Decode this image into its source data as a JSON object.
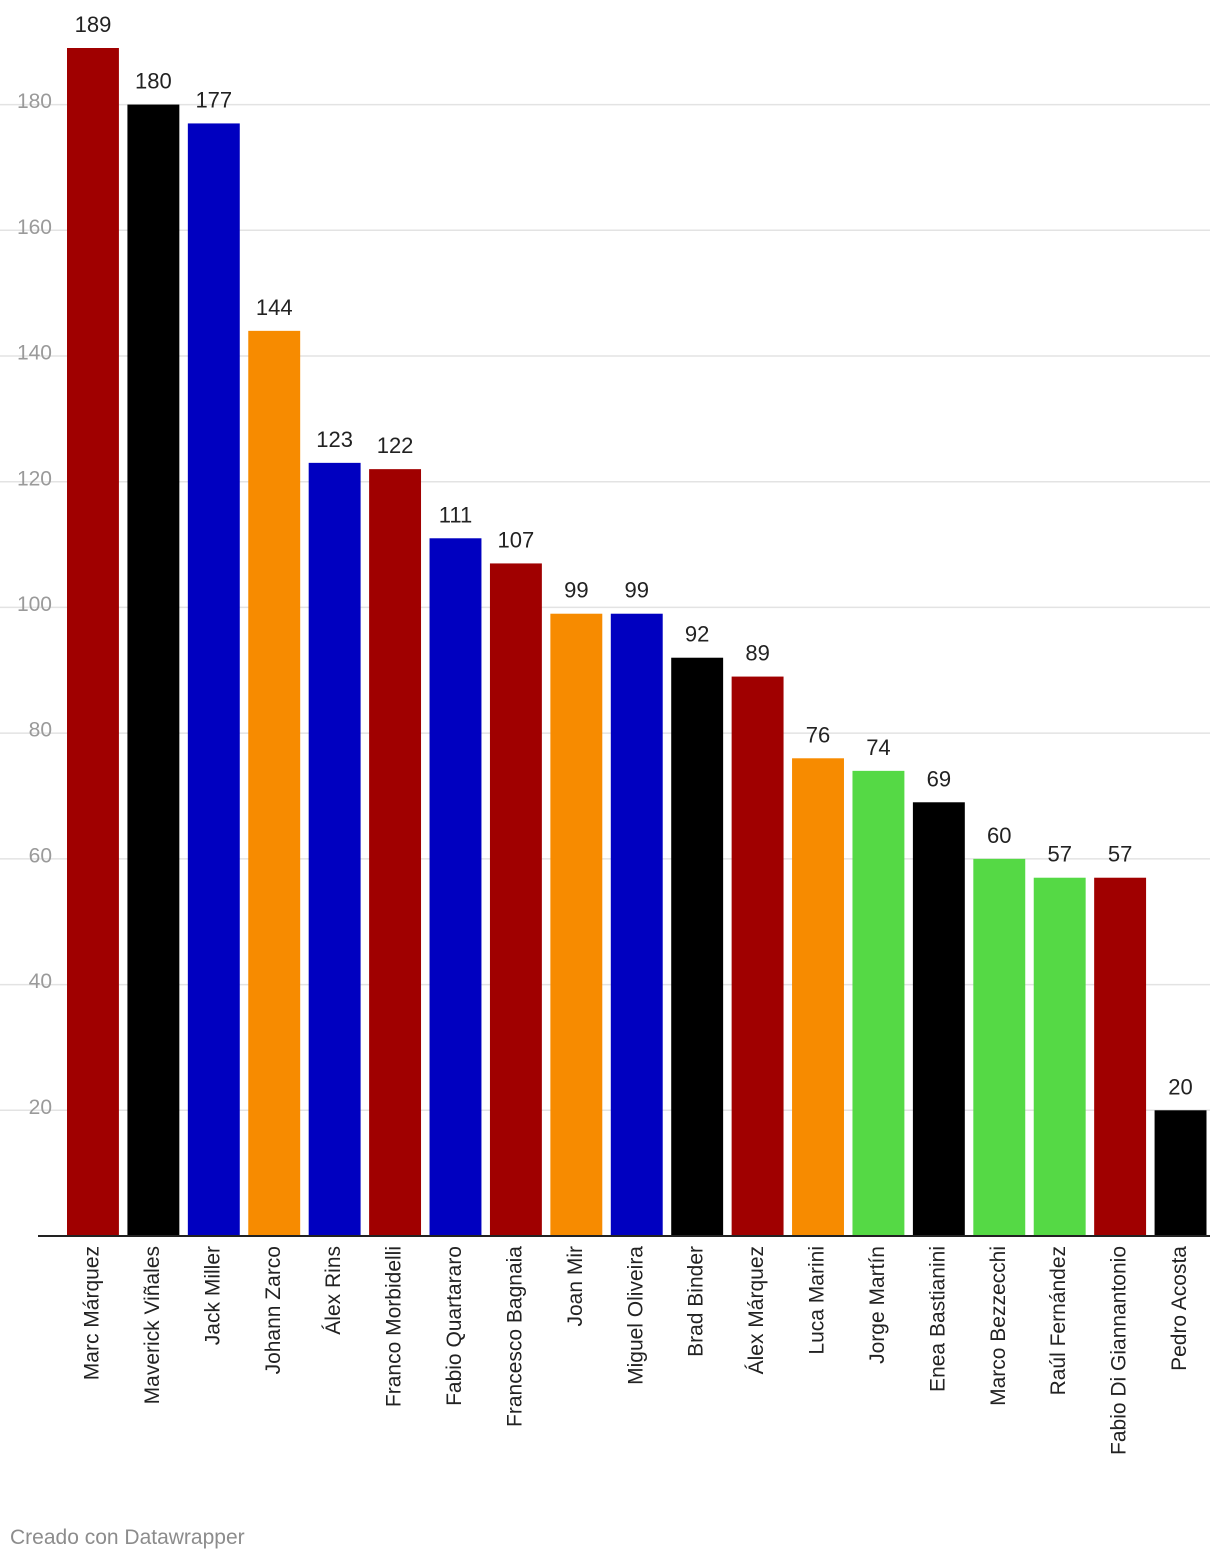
{
  "chart_data": {
    "type": "bar",
    "title": "",
    "xlabel": "",
    "ylabel": "",
    "ylim": [
      0,
      189
    ],
    "yticks": [
      20,
      40,
      60,
      80,
      100,
      120,
      140,
      160,
      180
    ],
    "grid": true,
    "categories": [
      "Marc Márquez",
      "Maverick Viñales",
      "Jack Miller",
      "Johann Zarco",
      "Álex Rins",
      "Franco Morbidelli",
      "Fabio Quartararo",
      "Francesco Bagnaia",
      "Joan Mir",
      "Miguel Oliveira",
      "Brad Binder",
      "Álex Márquez",
      "Luca Marini",
      "Jorge Martín",
      "Enea Bastianini",
      "Marco Bezzecchi",
      "Raúl Fernández",
      "Fabio Di Giannantonio",
      "Pedro Acosta"
    ],
    "values": [
      189,
      180,
      177,
      144,
      123,
      122,
      111,
      107,
      99,
      99,
      92,
      89,
      76,
      74,
      69,
      60,
      57,
      57,
      20
    ],
    "colors": [
      "#a00000",
      "#000000",
      "#0000c0",
      "#f78b00",
      "#0000c0",
      "#a00000",
      "#0000c0",
      "#a00000",
      "#f78b00",
      "#0000c0",
      "#000000",
      "#a00000",
      "#f78b00",
      "#55d945",
      "#000000",
      "#55d945",
      "#55d945",
      "#a00000",
      "#000000"
    ]
  },
  "footer": {
    "credit": "Creado con Datawrapper"
  }
}
